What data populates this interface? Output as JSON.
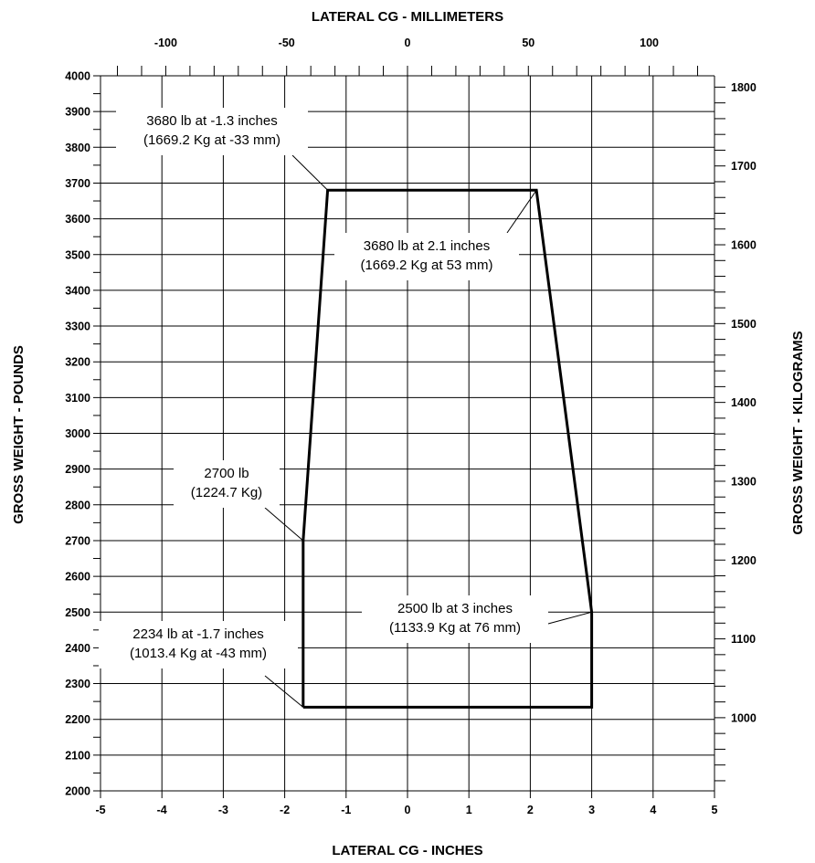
{
  "chart_data": {
    "type": "line",
    "title": "",
    "x_axis_bottom": {
      "label": "LATERAL CG - INCHES",
      "range": [
        -5,
        5
      ],
      "ticks": [
        -5,
        -4,
        -3,
        -2,
        -1,
        0,
        1,
        2,
        3,
        4,
        5
      ],
      "tick_labels": [
        "-5",
        "-4",
        "-3",
        "-2",
        "-1",
        "0",
        "1",
        "2",
        "3",
        "4",
        "5"
      ]
    },
    "x_axis_top": {
      "label": "LATERAL CG - MILLIMETERS",
      "range": [
        -127,
        127
      ],
      "ticks": [
        -100,
        -50,
        0,
        50,
        100
      ],
      "tick_labels": [
        "-100",
        "-50",
        "0",
        "50",
        "100"
      ]
    },
    "y_axis_left": {
      "label": "GROSS WEIGHT - POUNDS",
      "range": [
        2000,
        4000
      ],
      "ticks": [
        2000,
        2100,
        2200,
        2300,
        2400,
        2500,
        2600,
        2700,
        2800,
        2900,
        3000,
        3100,
        3200,
        3300,
        3400,
        3500,
        3600,
        3700,
        3800,
        3900,
        4000
      ],
      "tick_labels": [
        "2000",
        "2100",
        "2200",
        "2300",
        "2400",
        "2500",
        "2600",
        "2700",
        "2800",
        "2900",
        "3000",
        "3100",
        "3200",
        "3300",
        "3400",
        "3500",
        "3600",
        "3700",
        "3800",
        "3900",
        "4000"
      ]
    },
    "y_axis_right": {
      "label": "GROSS WEIGHT - KILOGRAMS",
      "ticks": [
        1000,
        1100,
        1200,
        1300,
        1400,
        1500,
        1600,
        1700,
        1800
      ],
      "tick_labels": [
        "1000",
        "1100",
        "1200",
        "1300",
        "1400",
        "1500",
        "1600",
        "1700",
        "1800"
      ]
    },
    "grid": true,
    "series": [
      {
        "x": [
          -1.7,
          -1.7,
          -1.3,
          2.1,
          3.0,
          3.0,
          -1.7
        ],
        "y": [
          2234,
          2700,
          3680,
          3680,
          2500,
          2234,
          2234
        ]
      }
    ],
    "annotations": [
      {
        "line1": "3680 lb at -1.3 inches",
        "line2": "(1669.2 Kg at -33 mm)",
        "point": [
          -1.3,
          3680
        ]
      },
      {
        "line1": "3680 lb at 2.1 inches",
        "line2": "(1669.2 Kg at 53 mm)",
        "point": [
          2.1,
          3680
        ]
      },
      {
        "line1": "2700 lb",
        "line2": "(1224.7 Kg)",
        "point": [
          -1.7,
          2700
        ]
      },
      {
        "line1": "2500 lb at 3 inches",
        "line2": "(1133.9 Kg at 76 mm)",
        "point": [
          3.0,
          2500
        ]
      },
      {
        "line1": "2234 lb at -1.7 inches",
        "line2": "(1013.4 Kg at -43 mm)",
        "point": [
          -1.7,
          2234
        ]
      }
    ]
  }
}
